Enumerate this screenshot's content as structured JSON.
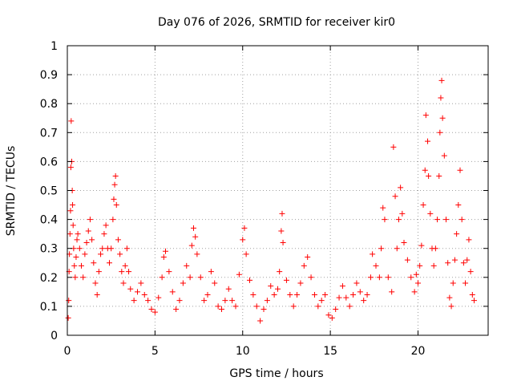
{
  "chart_data": {
    "type": "scatter",
    "title": "Day 076 of 2026, SRMTID for receiver kir0",
    "xlabel": "GPS time / hours",
    "ylabel": "SRMTID / TECUs",
    "xlim": [
      0,
      24
    ],
    "ylim": [
      0,
      1
    ],
    "xticks": [
      0,
      5,
      10,
      15,
      20
    ],
    "yticks": [
      0,
      0.1,
      0.2,
      0.3,
      0.4,
      0.5,
      0.6,
      0.7,
      0.8,
      0.9,
      1
    ],
    "xtick_labels": [
      "0",
      "5",
      "10",
      "15",
      "20"
    ],
    "ytick_labels": [
      "0",
      "0.1",
      "0.2",
      "0.3",
      "0.4",
      "0.5",
      "0.6",
      "0.7",
      "0.8",
      "0.9",
      "1"
    ],
    "grid": true,
    "marker": "+",
    "color": "#ff0000",
    "series": [
      {
        "name": "kir0",
        "points": [
          [
            0.05,
            0.06
          ],
          [
            0.08,
            0.12
          ],
          [
            0.1,
            0.22
          ],
          [
            0.12,
            0.28
          ],
          [
            0.15,
            0.35
          ],
          [
            0.18,
            0.43
          ],
          [
            0.2,
            0.58
          ],
          [
            0.22,
            0.74
          ],
          [
            0.25,
            0.6
          ],
          [
            0.28,
            0.5
          ],
          [
            0.3,
            0.45
          ],
          [
            0.33,
            0.38
          ],
          [
            0.36,
            0.3
          ],
          [
            0.4,
            0.24
          ],
          [
            0.45,
            0.2
          ],
          [
            0.5,
            0.27
          ],
          [
            0.55,
            0.33
          ],
          [
            0.6,
            0.35
          ],
          [
            0.7,
            0.3
          ],
          [
            0.8,
            0.24
          ],
          [
            0.9,
            0.2
          ],
          [
            1.0,
            0.28
          ],
          [
            1.1,
            0.32
          ],
          [
            1.2,
            0.36
          ],
          [
            1.3,
            0.4
          ],
          [
            1.4,
            0.33
          ],
          [
            1.5,
            0.25
          ],
          [
            1.6,
            0.18
          ],
          [
            1.7,
            0.14
          ],
          [
            1.8,
            0.22
          ],
          [
            1.9,
            0.28
          ],
          [
            2.0,
            0.3
          ],
          [
            2.1,
            0.35
          ],
          [
            2.2,
            0.38
          ],
          [
            2.3,
            0.3
          ],
          [
            2.4,
            0.25
          ],
          [
            2.5,
            0.3
          ],
          [
            2.6,
            0.4
          ],
          [
            2.65,
            0.47
          ],
          [
            2.7,
            0.52
          ],
          [
            2.75,
            0.55
          ],
          [
            2.8,
            0.45
          ],
          [
            2.9,
            0.33
          ],
          [
            3.0,
            0.28
          ],
          [
            3.1,
            0.22
          ],
          [
            3.2,
            0.18
          ],
          [
            3.3,
            0.24
          ],
          [
            3.4,
            0.3
          ],
          [
            3.5,
            0.22
          ],
          [
            3.6,
            0.16
          ],
          [
            3.8,
            0.12
          ],
          [
            4.0,
            0.15
          ],
          [
            4.2,
            0.18
          ],
          [
            4.4,
            0.14
          ],
          [
            4.6,
            0.12
          ],
          [
            4.8,
            0.09
          ],
          [
            5.0,
            0.08
          ],
          [
            5.2,
            0.13
          ],
          [
            5.4,
            0.2
          ],
          [
            5.5,
            0.27
          ],
          [
            5.6,
            0.29
          ],
          [
            5.8,
            0.22
          ],
          [
            6.0,
            0.15
          ],
          [
            6.2,
            0.09
          ],
          [
            6.4,
            0.12
          ],
          [
            6.6,
            0.18
          ],
          [
            6.8,
            0.24
          ],
          [
            7.0,
            0.2
          ],
          [
            7.1,
            0.31
          ],
          [
            7.2,
            0.37
          ],
          [
            7.3,
            0.34
          ],
          [
            7.4,
            0.28
          ],
          [
            7.6,
            0.2
          ],
          [
            7.8,
            0.12
          ],
          [
            8.0,
            0.14
          ],
          [
            8.2,
            0.22
          ],
          [
            8.4,
            0.18
          ],
          [
            8.6,
            0.1
          ],
          [
            8.8,
            0.09
          ],
          [
            9.0,
            0.12
          ],
          [
            9.2,
            0.16
          ],
          [
            9.4,
            0.12
          ],
          [
            9.6,
            0.1
          ],
          [
            9.8,
            0.21
          ],
          [
            10.0,
            0.33
          ],
          [
            10.1,
            0.37
          ],
          [
            10.2,
            0.28
          ],
          [
            10.4,
            0.19
          ],
          [
            10.6,
            0.14
          ],
          [
            10.8,
            0.1
          ],
          [
            11.0,
            0.05
          ],
          [
            11.2,
            0.09
          ],
          [
            11.4,
            0.12
          ],
          [
            11.6,
            0.17
          ],
          [
            11.8,
            0.14
          ],
          [
            12.0,
            0.16
          ],
          [
            12.1,
            0.22
          ],
          [
            12.2,
            0.36
          ],
          [
            12.25,
            0.42
          ],
          [
            12.3,
            0.32
          ],
          [
            12.5,
            0.19
          ],
          [
            12.7,
            0.14
          ],
          [
            12.9,
            0.1
          ],
          [
            13.1,
            0.14
          ],
          [
            13.3,
            0.18
          ],
          [
            13.5,
            0.24
          ],
          [
            13.7,
            0.27
          ],
          [
            13.9,
            0.2
          ],
          [
            14.1,
            0.14
          ],
          [
            14.3,
            0.1
          ],
          [
            14.5,
            0.12
          ],
          [
            14.7,
            0.14
          ],
          [
            14.9,
            0.07
          ],
          [
            15.1,
            0.06
          ],
          [
            15.3,
            0.09
          ],
          [
            15.5,
            0.13
          ],
          [
            15.7,
            0.17
          ],
          [
            15.9,
            0.13
          ],
          [
            16.1,
            0.1
          ],
          [
            16.3,
            0.14
          ],
          [
            16.5,
            0.18
          ],
          [
            16.7,
            0.15
          ],
          [
            16.9,
            0.12
          ],
          [
            17.1,
            0.14
          ],
          [
            17.3,
            0.2
          ],
          [
            17.4,
            0.28
          ],
          [
            17.6,
            0.24
          ],
          [
            17.8,
            0.2
          ],
          [
            17.9,
            0.3
          ],
          [
            18.0,
            0.44
          ],
          [
            18.1,
            0.4
          ],
          [
            18.3,
            0.2
          ],
          [
            18.5,
            0.15
          ],
          [
            18.6,
            0.65
          ],
          [
            18.7,
            0.48
          ],
          [
            18.8,
            0.3
          ],
          [
            18.9,
            0.4
          ],
          [
            19.0,
            0.51
          ],
          [
            19.1,
            0.42
          ],
          [
            19.2,
            0.32
          ],
          [
            19.4,
            0.26
          ],
          [
            19.6,
            0.2
          ],
          [
            19.8,
            0.15
          ],
          [
            19.9,
            0.21
          ],
          [
            20.0,
            0.18
          ],
          [
            20.1,
            0.24
          ],
          [
            20.2,
            0.31
          ],
          [
            20.3,
            0.45
          ],
          [
            20.4,
            0.57
          ],
          [
            20.45,
            0.76
          ],
          [
            20.55,
            0.67
          ],
          [
            20.6,
            0.55
          ],
          [
            20.7,
            0.42
          ],
          [
            20.8,
            0.3
          ],
          [
            20.9,
            0.24
          ],
          [
            21.0,
            0.3
          ],
          [
            21.1,
            0.4
          ],
          [
            21.2,
            0.55
          ],
          [
            21.25,
            0.7
          ],
          [
            21.3,
            0.82
          ],
          [
            21.35,
            0.88
          ],
          [
            21.4,
            0.75
          ],
          [
            21.5,
            0.62
          ],
          [
            21.6,
            0.4
          ],
          [
            21.7,
            0.25
          ],
          [
            21.8,
            0.13
          ],
          [
            21.9,
            0.1
          ],
          [
            22.0,
            0.18
          ],
          [
            22.1,
            0.26
          ],
          [
            22.2,
            0.35
          ],
          [
            22.3,
            0.45
          ],
          [
            22.4,
            0.57
          ],
          [
            22.5,
            0.4
          ],
          [
            22.6,
            0.25
          ],
          [
            22.7,
            0.18
          ],
          [
            22.8,
            0.26
          ],
          [
            22.9,
            0.33
          ],
          [
            23.0,
            0.22
          ],
          [
            23.1,
            0.14
          ],
          [
            23.2,
            0.12
          ]
        ]
      }
    ]
  }
}
